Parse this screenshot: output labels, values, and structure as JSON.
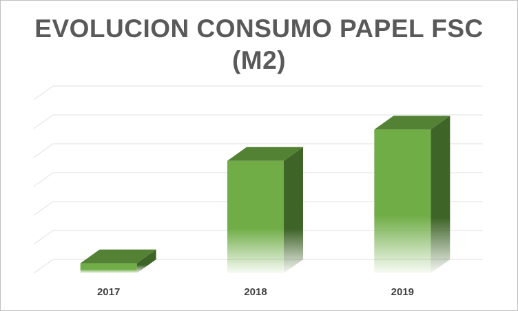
{
  "chart_data": {
    "type": "bar",
    "title_lines": [
      "EVOLUCION CONSUMO PAPEL FSC",
      "(M2)"
    ],
    "categories": [
      "2017",
      "2018",
      "2019"
    ],
    "values": [
      6,
      68,
      87
    ],
    "ylim": [
      0,
      105
    ],
    "grid": true,
    "legend": "none",
    "xlabel": "",
    "ylabel": "",
    "colors": {
      "bar_front": "#70ad47",
      "bar_top": "#548235",
      "bar_side": "#3f6428",
      "grid": "#e6e6e6"
    }
  }
}
